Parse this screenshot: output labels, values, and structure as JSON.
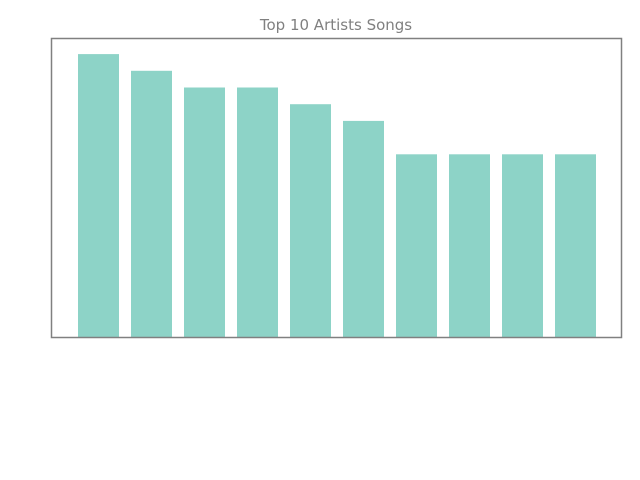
{
  "chart_data": {
    "type": "bar",
    "title": "Top 10 Artists Songs",
    "xlabel": "",
    "ylabel": "",
    "values": [
      17,
      16,
      15,
      15,
      14,
      13,
      11,
      11,
      11,
      11
    ],
    "ylim": [
      0,
      18
    ],
    "grid": false,
    "legend": "none",
    "bar_color": "#8dd3c7",
    "frame_color": "#808080",
    "title_color": "#808080"
  }
}
